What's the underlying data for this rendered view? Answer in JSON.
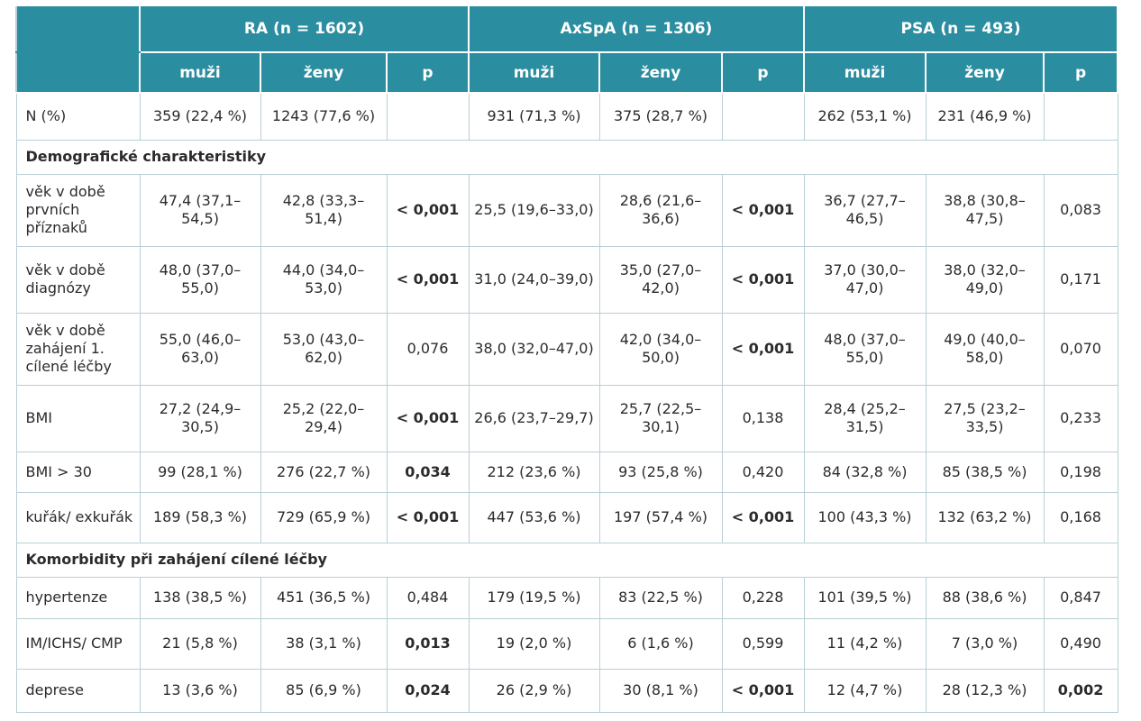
{
  "groups": [
    "RA (n = 1602)",
    "AxSpA (n = 1306)",
    "PSA (n = 493)"
  ],
  "subheaders": [
    "muži",
    "ženy",
    "p",
    "muži",
    "ženy",
    "p",
    "muži",
    "ženy",
    "p"
  ],
  "n_row": {
    "label": "N (%)",
    "cells": [
      "359 (22,4 %)",
      "1243 (77,6 %)",
      "",
      "931 (71,3 %)",
      "375 (28,7 %)",
      "",
      "262 (53,1 %)",
      "231 (46,9 %)",
      ""
    ]
  },
  "sections": [
    {
      "title": "Demografické charakteristiky",
      "rows": [
        {
          "label": "věk v době prvních příznaků",
          "cells": [
            "47,4 (37,1–54,5)",
            "42,8 (33,3–51,4)",
            "< 0,001",
            "25,5 (19,6–33,0)",
            "28,6 (21,6–36,6)",
            "< 0,001",
            "36,7 (27,7–46,5)",
            "38,8 (30,8–47,5)",
            "0,083"
          ],
          "bold": [
            2,
            5
          ]
        },
        {
          "label": "věk v době diagnózy",
          "cells": [
            "48,0 (37,0–55,0)",
            "44,0 (34,0–53,0)",
            "< 0,001",
            "31,0 (24,0–39,0)",
            "35,0 (27,0–42,0)",
            "< 0,001",
            "37,0 (30,0–47,0)",
            "38,0 (32,0–49,0)",
            "0,171"
          ],
          "bold": [
            2,
            5
          ]
        },
        {
          "label": "věk v době zahájení 1. cílené léčby",
          "cells": [
            "55,0 (46,0–63,0)",
            "53,0 (43,0–62,0)",
            "0,076",
            "38,0 (32,0–47,0)",
            "42,0 (34,0–50,0)",
            "< 0,001",
            "48,0 (37,0–55,0)",
            "49,0 (40,0–58,0)",
            "0,070"
          ],
          "bold": [
            5
          ]
        },
        {
          "label": "BMI",
          "cells": [
            "27,2 (24,9–30,5)",
            "25,2 (22,0–29,4)",
            "< 0,001",
            "26,6 (23,7–29,7)",
            "25,7 (22,5–30,1)",
            "0,138",
            "28,4 (25,2–31,5)",
            "27,5 (23,2–33,5)",
            "0,233"
          ],
          "bold": [
            2
          ]
        },
        {
          "label": "BMI > 30",
          "cells": [
            "99 (28,1 %)",
            "276 (22,7 %)",
            "0,034",
            "212 (23,6 %)",
            "93 (25,8 %)",
            "0,420",
            "84 (32,8 %)",
            "85 (38,5 %)",
            "0,198"
          ],
          "bold": [
            2
          ]
        },
        {
          "label": "kuřák/ exkuřák",
          "cells": [
            "189 (58,3 %)",
            "729 (65,9 %)",
            "< 0,001",
            "447 (53,6 %)",
            "197 (57,4 %)",
            "< 0,001",
            "100 (43,3 %)",
            "132 (63,2 %)",
            "0,168"
          ],
          "bold": [
            2,
            5
          ]
        }
      ]
    },
    {
      "title": "Komorbidity při zahájení cílené léčby",
      "rows": [
        {
          "label": "hypertenze",
          "cells": [
            "138 (38,5 %)",
            "451 (36,5 %)",
            "0,484",
            "179 (19,5 %)",
            "83 (22,5 %)",
            "0,228",
            "101 (39,5 %)",
            "88 (38,6 %)",
            "0,847"
          ],
          "bold": []
        },
        {
          "label": "IM/ICHS/ CMP",
          "cells": [
            "21 (5,8 %)",
            "38 (3,1 %)",
            "0,013",
            "19 (2,0 %)",
            "6 (1,6 %)",
            "0,599",
            "11 (4,2 %)",
            "7 (3,0 %)",
            "0,490"
          ],
          "bold": [
            2
          ]
        },
        {
          "label": "deprese",
          "cells": [
            "13 (3,6 %)",
            "85 (6,9 %)",
            "0,024",
            "26 (2,9 %)",
            "30 (8,1 %)",
            "< 0,001",
            "12 (4,7 %)",
            "28 (12,3 %)",
            "0,002"
          ],
          "bold": [
            2,
            5,
            8
          ]
        }
      ]
    }
  ]
}
